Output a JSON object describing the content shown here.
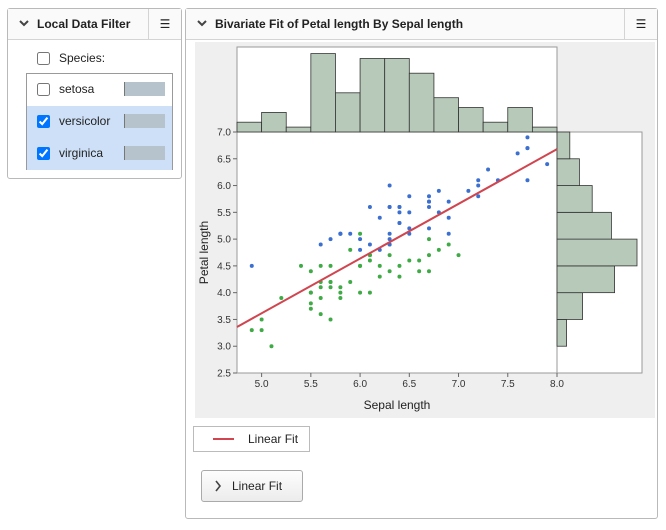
{
  "filter_panel": {
    "title": "Local Data Filter",
    "column": {
      "label": "Species:",
      "checked": false
    },
    "levels": [
      {
        "label": "setosa",
        "checked": false
      },
      {
        "label": "versicolor",
        "checked": true
      },
      {
        "label": "virginica",
        "checked": true
      }
    ]
  },
  "report": {
    "title": "Bivariate Fit of Petal length By Sepal length",
    "button": "Linear Fit"
  },
  "chart_data": {
    "type": "scatter",
    "xlabel": "Sepal length",
    "ylabel": "Petal length",
    "xlim": [
      4.75,
      8.0
    ],
    "ylim": [
      2.5,
      7.0
    ],
    "xticks": [
      {
        "value": 5,
        "label": "5.0"
      },
      5.5,
      {
        "value": 6,
        "label": "6.0"
      },
      6.5,
      {
        "value": 7,
        "label": "7.0"
      },
      7.5,
      {
        "value": 8,
        "label": "8.0"
      }
    ],
    "yticks": [
      2.5,
      {
        "value": 3,
        "label": "3.0"
      },
      3.5,
      {
        "value": 4,
        "label": "4.0"
      },
      4.5,
      {
        "value": 5,
        "label": "5.0"
      },
      5.5,
      {
        "value": 6,
        "label": "6.0"
      },
      6.5,
      {
        "value": 7,
        "label": "7.0"
      }
    ],
    "series": [
      {
        "color": "#3faa46",
        "x": [
          7.0,
          6.4,
          6.9,
          5.5,
          6.5,
          5.7,
          6.3,
          4.9,
          6.6,
          5.2,
          5.0,
          5.9,
          6.0,
          6.1,
          5.6,
          6.7,
          5.6,
          5.8,
          6.2,
          5.6,
          5.9,
          6.1,
          6.3,
          6.1,
          6.4,
          6.6,
          6.8,
          6.7,
          6.0,
          5.7,
          5.5,
          5.5,
          5.8,
          6.0,
          5.4,
          6.0,
          6.7,
          6.3,
          5.6,
          5.5,
          5.5,
          6.1,
          5.8,
          5.0,
          5.6,
          5.7,
          5.7,
          6.2,
          5.1,
          5.7
        ],
        "values": [
          4.7,
          4.5,
          4.9,
          4.0,
          4.6,
          4.5,
          4.7,
          3.3,
          4.6,
          3.9,
          3.5,
          4.2,
          4.0,
          4.7,
          3.6,
          4.4,
          4.5,
          4.1,
          4.5,
          3.9,
          4.8,
          4.0,
          4.9,
          4.7,
          4.3,
          4.4,
          4.8,
          5.0,
          4.5,
          3.5,
          3.8,
          3.7,
          3.9,
          5.1,
          4.5,
          4.5,
          4.7,
          4.4,
          4.1,
          4.0,
          4.4,
          4.6,
          4.0,
          3.3,
          4.2,
          4.2,
          4.2,
          4.3,
          3.0,
          4.1
        ]
      },
      {
        "color": "#3b6fd0",
        "x": [
          6.3,
          5.8,
          7.1,
          6.3,
          6.5,
          7.6,
          4.9,
          7.3,
          6.7,
          7.2,
          6.5,
          6.4,
          6.8,
          5.7,
          5.8,
          6.4,
          6.5,
          7.7,
          7.7,
          6.0,
          6.9,
          5.6,
          7.7,
          6.3,
          6.7,
          7.2,
          6.2,
          6.1,
          6.4,
          7.2,
          7.4,
          7.9,
          6.4,
          6.3,
          6.1,
          7.7,
          6.3,
          6.4,
          6.0,
          6.9,
          6.7,
          6.9,
          5.8,
          6.8,
          6.7,
          6.7,
          6.3,
          6.5,
          6.2,
          5.9
        ],
        "values": [
          6.0,
          5.1,
          5.9,
          5.6,
          5.8,
          6.6,
          4.5,
          6.3,
          5.8,
          6.1,
          5.1,
          5.3,
          5.5,
          5.0,
          5.1,
          5.3,
          5.5,
          6.7,
          6.9,
          5.0,
          5.7,
          4.9,
          6.7,
          4.9,
          5.7,
          6.0,
          4.8,
          4.9,
          5.6,
          5.8,
          6.1,
          6.4,
          5.6,
          5.1,
          5.6,
          6.1,
          5.6,
          5.5,
          4.8,
          5.4,
          5.6,
          5.1,
          5.1,
          5.9,
          5.7,
          5.2,
          5.0,
          5.2,
          5.4,
          5.1
        ]
      }
    ],
    "fit": {
      "name": "Linear Fit",
      "color": "#d0454f",
      "x": [
        4.75,
        8.0
      ],
      "y": [
        3.36,
        6.68
      ]
    },
    "top_histogram": {
      "color": "#b7c9b9",
      "bins": [
        4.75,
        5.0,
        5.25,
        5.5,
        5.75,
        6.0,
        6.25,
        6.5,
        6.75,
        7.0,
        7.25,
        7.5,
        7.75,
        8.0
      ],
      "values": [
        2,
        4,
        1,
        16,
        8,
        15,
        15,
        12,
        7,
        5,
        2,
        5,
        1
      ]
    },
    "right_histogram": {
      "color": "#b7c9b9",
      "bins": [
        3.0,
        3.5,
        4.0,
        4.5,
        5.0,
        5.5,
        6.0,
        6.5,
        7.0
      ],
      "values": [
        3,
        8,
        18,
        25,
        17,
        11,
        7,
        4
      ]
    }
  }
}
